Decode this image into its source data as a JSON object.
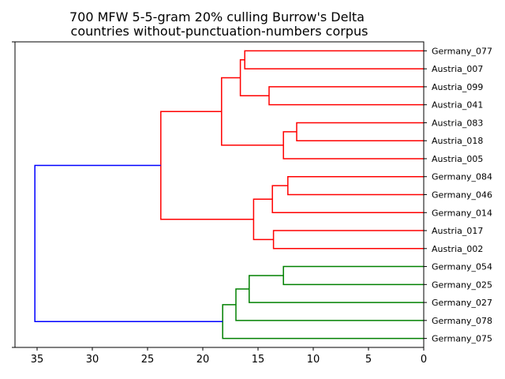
{
  "chart_data": {
    "type": "dendrogram",
    "title_lines": [
      "700 MFW 5-5-gram 20% culling Burrow's Delta",
      "countries without-punctuation-numbers corpus"
    ],
    "orientation": "left",
    "xlim": [
      37,
      0
    ],
    "xticks": [
      35,
      30,
      25,
      20,
      15,
      10,
      5,
      0
    ],
    "xtick_labels": [
      "35",
      "30",
      "25",
      "20",
      "15",
      "10",
      "5",
      "0"
    ],
    "leaves": [
      "Germany_077",
      "Austria_007",
      "Austria_099",
      "Austria_041",
      "Austria_083",
      "Austria_018",
      "Austria_005",
      "Germany_084",
      "Germany_046",
      "Germany_014",
      "Austria_017",
      "Austria_002",
      "Germany_054",
      "Germany_025",
      "Germany_027",
      "Germany_078",
      "Germany_075"
    ],
    "colors": {
      "cluster_red": "#ff0000",
      "cluster_green": "#008000",
      "root_blue": "#0000ff"
    },
    "links": [
      {
        "a": 0,
        "b": 1,
        "h": 16.2,
        "color": "cluster_red"
      },
      {
        "a": 2,
        "b": 3,
        "h": 14.0,
        "color": "cluster_red"
      },
      {
        "a": 17,
        "b": 18,
        "h": 16.6,
        "color": "cluster_red"
      },
      {
        "a": 4,
        "b": 5,
        "h": 11.5,
        "color": "cluster_red"
      },
      {
        "a": 20,
        "b": 6,
        "h": 12.7,
        "color": "cluster_red"
      },
      {
        "a": 19,
        "b": 21,
        "h": 18.3,
        "color": "cluster_red"
      },
      {
        "a": 7,
        "b": 8,
        "h": 12.3,
        "color": "cluster_red"
      },
      {
        "a": 23,
        "b": 9,
        "h": 13.7,
        "color": "cluster_red"
      },
      {
        "a": 10,
        "b": 11,
        "h": 13.6,
        "color": "cluster_red"
      },
      {
        "a": 24,
        "b": 25,
        "h": 15.4,
        "color": "cluster_red"
      },
      {
        "a": 22,
        "b": 26,
        "h": 23.8,
        "color": "cluster_red"
      },
      {
        "a": 12,
        "b": 13,
        "h": 12.7,
        "color": "cluster_green"
      },
      {
        "a": 28,
        "b": 14,
        "h": 15.8,
        "color": "cluster_green"
      },
      {
        "a": 29,
        "b": 15,
        "h": 17.0,
        "color": "cluster_green"
      },
      {
        "a": 30,
        "b": 16,
        "h": 18.2,
        "color": "cluster_green"
      },
      {
        "a": 27,
        "b": 31,
        "h": 35.2,
        "color": "root_blue"
      }
    ]
  }
}
